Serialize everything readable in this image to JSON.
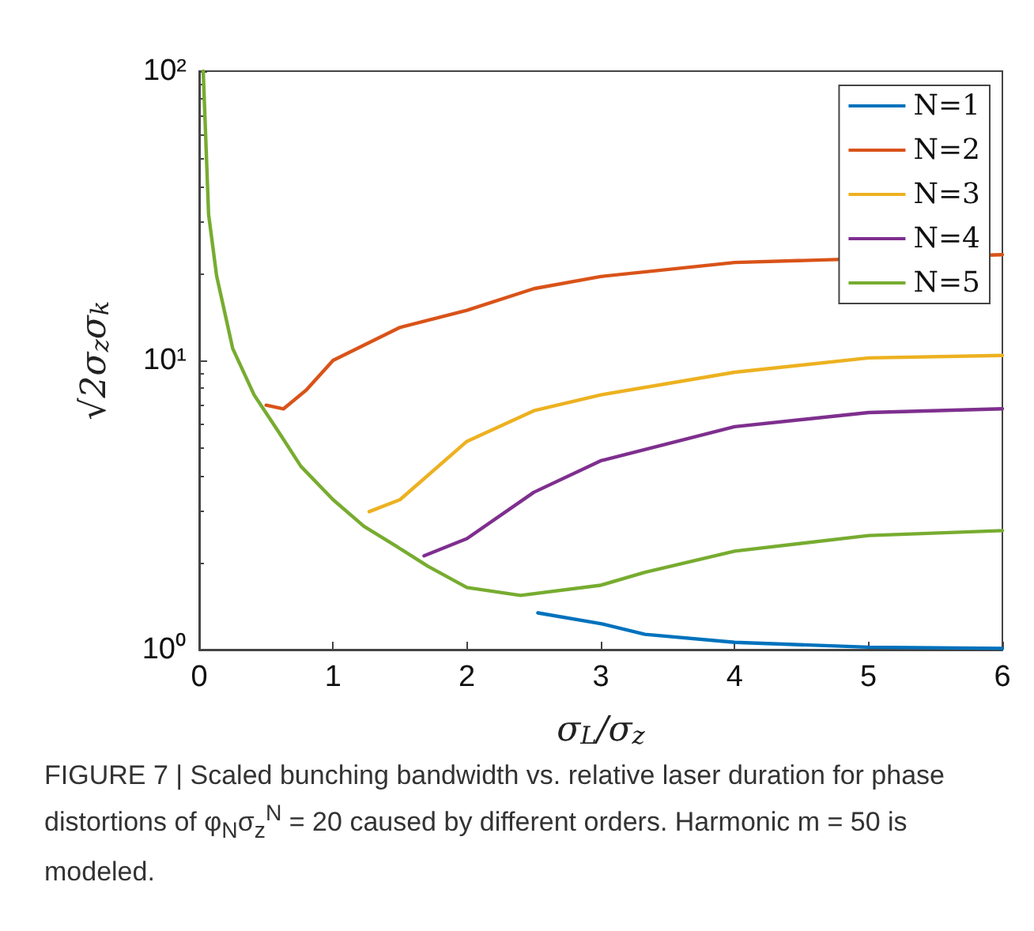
{
  "chart_data": {
    "type": "line",
    "xlabel": "σ$_{L}$/σ$_{z}$",
    "ylabel": "√2σ$_{z}$σ$_{k}$",
    "log": "y",
    "xlim": [
      0,
      6
    ],
    "xticks": [
      0,
      1,
      2,
      3,
      4,
      5,
      6
    ],
    "ylim": [
      1,
      100
    ],
    "yticks": [
      {
        "value": 1,
        "label": "10⁰"
      },
      {
        "value": 10,
        "label": "10¹"
      },
      {
        "value": 100,
        "label": "10²"
      }
    ],
    "grid": false,
    "legend": "top right",
    "line_style": "solid",
    "annotations": [
      "FIGURE 7 | Scaled bunching bandwidth vs. relative laser duration for phase distortions of φ$_{N}$σ$_{z}$$^{N}$ = 20 caused by different orders. Harmonic m = 50 is modeled."
    ],
    "series": [
      {
        "name": "N=1",
        "color": "#0072bd",
        "x": [
          2.53,
          3.0,
          3.33,
          4,
          5,
          6
        ],
        "values": [
          1.34,
          1.23,
          1.13,
          1.06,
          1.02,
          1.01
        ]
      },
      {
        "name": "N=2",
        "color": "#d95319",
        "x": [
          0.5,
          0.63,
          0.8,
          1.0,
          1.5,
          2,
          2.5,
          3,
          4,
          5,
          6
        ],
        "values": [
          7.0,
          6.8,
          7.9,
          10,
          13,
          14.9,
          17.7,
          19.5,
          21.8,
          null,
          23.2
        ]
      },
      {
        "name": "N=3",
        "color": "#edb120",
        "x": [
          1.27,
          1.5,
          2,
          2.5,
          3,
          4,
          5,
          6
        ],
        "values": [
          3.0,
          3.3,
          5.25,
          6.7,
          7.6,
          9.1,
          10.2,
          10.4
        ]
      },
      {
        "name": "N=4",
        "color": "#7e2f8e",
        "x": [
          1.68,
          2,
          2.5,
          3,
          4,
          5,
          6
        ],
        "values": [
          2.11,
          2.42,
          3.5,
          4.5,
          5.9,
          6.6,
          6.8
        ]
      },
      {
        "name": "N=5",
        "color": "#77ac30",
        "x": [
          0.03,
          0.07,
          0.13,
          0.25,
          0.41,
          0.6,
          0.76,
          1.0,
          1.23,
          1.47,
          1.71,
          2.0,
          2.4,
          3,
          3.33,
          4,
          5,
          6
        ],
        "values": [
          100,
          32,
          19.6,
          11,
          7.6,
          5.6,
          4.3,
          3.3,
          2.67,
          2.28,
          1.94,
          1.64,
          1.54,
          1.67,
          1.85,
          2.19,
          2.48,
          2.58
        ]
      }
    ]
  }
}
